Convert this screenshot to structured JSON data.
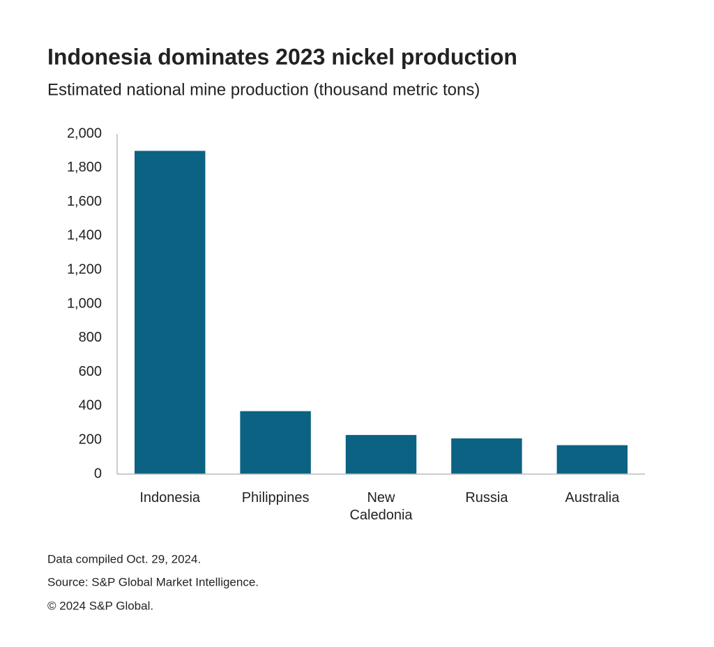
{
  "chart_data": {
    "type": "bar",
    "title": "Indonesia dominates 2023 nickel production",
    "subtitle": "Estimated national mine production (thousand metric tons)",
    "categories": [
      "Indonesia",
      "Philippines",
      "New Caledonia",
      "Russia",
      "Australia"
    ],
    "values": [
      1900,
      370,
      230,
      210,
      170
    ],
    "color": "#0b6282",
    "ylim": [
      0,
      2000
    ],
    "yticks": [
      0,
      200,
      400,
      600,
      800,
      {
        "value": 1000,
        "label": "1,000"
      },
      {
        "value": 1200,
        "label": "1,200"
      },
      {
        "value": 1400,
        "label": "1,400"
      },
      {
        "value": 1600,
        "label": "1,600"
      },
      {
        "value": 1800,
        "label": "1,800"
      },
      {
        "value": 2000,
        "label": "2,000"
      }
    ],
    "grid": false,
    "notes": [
      "Data compiled Oct. 29, 2024.",
      "Source: S&P Global Market Intelligence.",
      "© 2024 S&P Global."
    ]
  }
}
